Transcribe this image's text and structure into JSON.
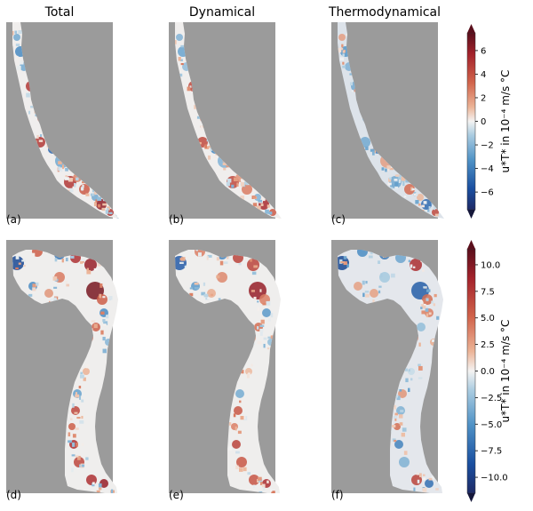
{
  "figure": {
    "column_titles": [
      "Total",
      "Dynamical",
      "Thermodynamical"
    ],
    "panel_labels": [
      "(a)",
      "(b)",
      "(c)",
      "(d)",
      "(e)",
      "(f)"
    ],
    "land_color": "#9b9b9b"
  },
  "chart_data": [
    {
      "type": "heatmap",
      "panels": [
        {
          "label": "(a)",
          "title": "Total"
        },
        {
          "label": "(b)",
          "title": "Dynamical"
        },
        {
          "label": "(c)",
          "title": "Thermodynamical"
        }
      ],
      "colorbar": {
        "label": "u*T* in 10⁻⁴ m/s °C",
        "ticks": [
          "6",
          "4",
          "2",
          "0",
          "−2",
          "−4",
          "−6"
        ],
        "tick_values": [
          6,
          4,
          2,
          0,
          -2,
          -4,
          -6
        ],
        "range": [
          -7.5,
          7.5
        ],
        "extend": "both",
        "colormap": [
          "#15173a",
          "#1a4fa0",
          "#4f92c6",
          "#a9cbe0",
          "#f4f3f2",
          "#ecb497",
          "#d1644b",
          "#a3222b",
          "#4a0b16"
        ]
      }
    },
    {
      "type": "heatmap",
      "panels": [
        {
          "label": "(d)",
          "title": ""
        },
        {
          "label": "(e)",
          "title": ""
        },
        {
          "label": "(f)",
          "title": ""
        }
      ],
      "colorbar": {
        "label": "u*T* in 10⁻⁴ m/s °C",
        "ticks": [
          "10.0",
          "7.5",
          "5.0",
          "2.5",
          "0.0",
          "−2.5",
          "−5.0",
          "−7.5",
          "−10.0"
        ],
        "tick_values": [
          10,
          7.5,
          5,
          2.5,
          0,
          -2.5,
          -5,
          -7.5,
          -10
        ],
        "range": [
          -11.5,
          11.5
        ],
        "extend": "both",
        "colormap": [
          "#15173a",
          "#1a4fa0",
          "#4f92c6",
          "#a9cbe0",
          "#f4f3f2",
          "#ecb497",
          "#d1644b",
          "#a3222b",
          "#4a0b16"
        ]
      }
    }
  ]
}
